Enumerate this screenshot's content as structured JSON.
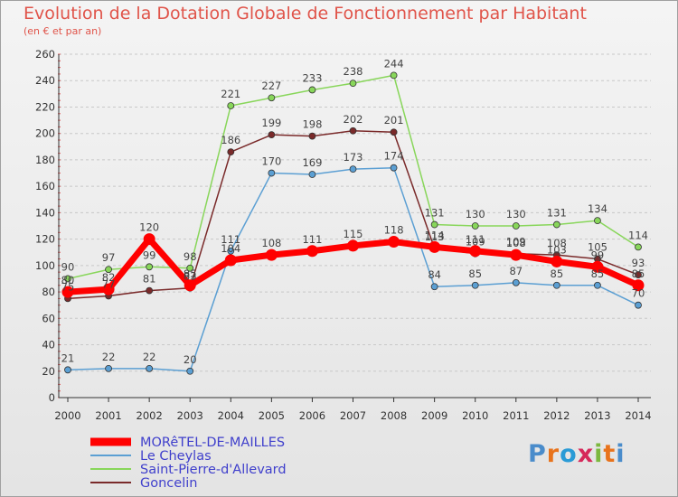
{
  "chart_data": {
    "type": "line",
    "title": "Evolution de la Dotation Globale de Fonctionnement par Habitant",
    "subtitle": "(en € et par an)",
    "xlabel": "",
    "ylabel": "",
    "x": [
      "2000",
      "2001",
      "2002",
      "2003",
      "2004",
      "2005",
      "2006",
      "2007",
      "2008",
      "2009",
      "2010",
      "2011",
      "2012",
      "2013",
      "2014"
    ],
    "ylim": [
      0,
      260
    ],
    "yticks": [
      0,
      20,
      40,
      60,
      80,
      100,
      120,
      140,
      160,
      180,
      200,
      220,
      240,
      260
    ],
    "grid": "horizontal dashed",
    "legend_position": "bottom-left",
    "series": [
      {
        "name": "MORêTEL-DE-MAILLES",
        "color": "#ff0000",
        "values": [
          80,
          82,
          120,
          85,
          104,
          108,
          111,
          115,
          118,
          114,
          111,
          108,
          103,
          99,
          85
        ]
      },
      {
        "name": "Le Cheylas",
        "color": "#5b9fd3",
        "values": [
          21,
          22,
          22,
          20,
          111,
          170,
          169,
          173,
          174,
          84,
          85,
          87,
          85,
          85,
          70
        ]
      },
      {
        "name": "Saint-Pierre-d'Allevard",
        "color": "#88d65a",
        "values": [
          90,
          97,
          99,
          98,
          221,
          227,
          233,
          238,
          244,
          131,
          130,
          130,
          131,
          134,
          114
        ]
      },
      {
        "name": "Goncelin",
        "color": "#7a2a2a",
        "values": [
          75,
          77,
          81,
          83,
          186,
          199,
          198,
          202,
          201,
          113,
          109,
          109,
          108,
          105,
          93
        ]
      }
    ]
  },
  "branding": {
    "logo_text": "Proxiti",
    "logo_colors": [
      "#4a8ccb",
      "#e8731c",
      "#2a9bd6",
      "#d6285a",
      "#7cb83e",
      "#e8731c",
      "#4a8ccb"
    ]
  }
}
